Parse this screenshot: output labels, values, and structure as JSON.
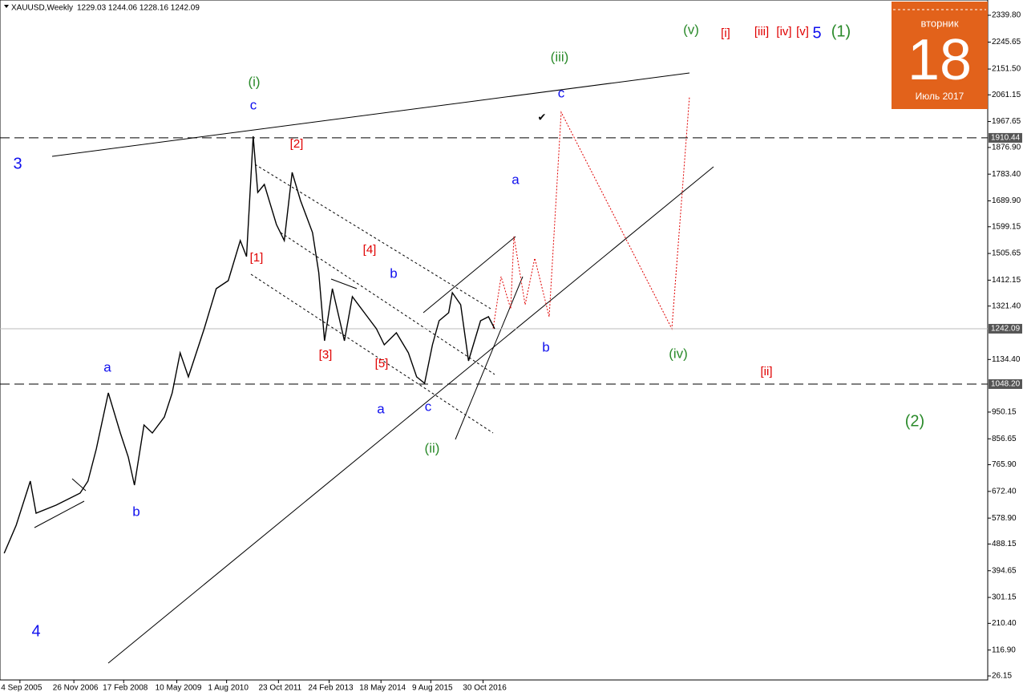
{
  "chart_data": {
    "type": "line",
    "title": "XAUUSD,Weekly",
    "ohlc": "1229.03 1244.06 1228.16 1242.09",
    "color": "#000000",
    "x": [
      2005.3,
      2005.59,
      2005.93,
      2006.07,
      2006.55,
      2007.13,
      2007.32,
      2007.52,
      2007.81,
      2008.1,
      2008.29,
      2008.44,
      2008.67,
      2008.87,
      2009.16,
      2009.35,
      2009.54,
      2009.74,
      2010.12,
      2010.41,
      2010.7,
      2010.99,
      2011.14,
      2011.3,
      2011.41,
      2011.57,
      2011.86,
      2012.05,
      2012.24,
      2012.44,
      2012.73,
      2012.88,
      2013.02,
      2013.21,
      2013.5,
      2013.69,
      2013.98,
      2014.27,
      2014.46,
      2014.75,
      2015.04,
      2015.24,
      2015.43,
      2015.62,
      2015.78,
      2016.01,
      2016.1,
      2016.3,
      2016.49,
      2016.78,
      2016.97,
      2017.12
    ],
    "values": [
      455.7,
      554.0,
      708.4,
      596.1,
      624.2,
      666.3,
      708.4,
      820.7,
      1017.3,
      876.9,
      792.6,
      694.4,
      905.0,
      876.9,
      933.0,
      1017.3,
      1157.7,
      1073.4,
      1241.9,
      1382.3,
      1410.4,
      1550.8,
      1494.6,
      1916.0,
      1719.3,
      1747.4,
      1607.0,
      1550.8,
      1789.5,
      1691.2,
      1578.9,
      1438.5,
      1199.8,
      1382.3,
      1199.8,
      1354.2,
      1298.1,
      1241.9,
      1185.8,
      1227.9,
      1157.7,
      1073.4,
      1051.0,
      1185.8,
      1270.0,
      1298.1,
      1368.3,
      1326.2,
      1129.6,
      1270.0,
      1284.0,
      1241.9
    ],
    "xlim": [
      2005.2,
      2029.0
    ],
    "xticks": [
      {
        "value": 2005.68,
        "label": "4 Sep 2005"
      },
      {
        "value": 2006.98,
        "label": "26 Nov 2006"
      },
      {
        "value": 2008.18,
        "label": "17 Feb 2008"
      },
      {
        "value": 2009.46,
        "label": "10 May 2009"
      },
      {
        "value": 2010.66,
        "label": "1 Aug 2010"
      },
      {
        "value": 2011.91,
        "label": "23 Oct 2011"
      },
      {
        "value": 2013.13,
        "label": "24 Feb 2013"
      },
      {
        "value": 2014.38,
        "label": "18 May 2014"
      },
      {
        "value": 2015.58,
        "label": "9 Aug 2015"
      },
      {
        "value": 2016.84,
        "label": "30 Oct 2016"
      }
    ],
    "ylim": [
      12.1,
      2393.2
    ],
    "yticks": [
      {
        "value": 2339.8,
        "label": "2339.80"
      },
      {
        "value": 2245.65,
        "label": "2245.65"
      },
      {
        "value": 2151.5,
        "label": "2151.50"
      },
      {
        "value": 2061.15,
        "label": "2061.15"
      },
      {
        "value": 1967.65,
        "label": "1967.65"
      },
      {
        "value": 1876.9,
        "label": "1876.90"
      },
      {
        "value": 1783.4,
        "label": "1783.40"
      },
      {
        "value": 1689.9,
        "label": "1689.90"
      },
      {
        "value": 1599.15,
        "label": "1599.15"
      },
      {
        "value": 1505.65,
        "label": "1505.65"
      },
      {
        "value": 1412.15,
        "label": "1412.15"
      },
      {
        "value": 1321.4,
        "label": "1321.40"
      },
      {
        "value": 1134.4,
        "label": "1134.40"
      },
      {
        "value": 950.15,
        "label": "950.15"
      },
      {
        "value": 856.65,
        "label": "856.65"
      },
      {
        "value": 765.9,
        "label": "765.90"
      },
      {
        "value": 672.4,
        "label": "672.40"
      },
      {
        "value": 578.9,
        "label": "578.90"
      },
      {
        "value": 488.15,
        "label": "488.15"
      },
      {
        "value": 394.65,
        "label": "394.65"
      },
      {
        "value": 301.15,
        "label": "301.15"
      },
      {
        "value": 210.4,
        "label": "210.40"
      },
      {
        "value": 116.9,
        "label": "116.90"
      },
      {
        "value": 26.15,
        "label": "26.15"
      }
    ],
    "levels": [
      1910.44,
      {
        "value": 1048.2,
        "label": "1048.20"
      }
    ],
    "last_price": 1242.09,
    "grid": false,
    "annotations": [
      "(v)",
      "[i]",
      "[iii]",
      "[iv]",
      "[v]",
      "5",
      "(1)",
      "(iii)",
      "(i)",
      "c",
      "c",
      "[2]",
      "3",
      "a",
      "[4]",
      "[1]",
      "b",
      "b",
      "(iv)",
      "[3]",
      "[5]",
      "a",
      "[ii]",
      "a",
      "c",
      "(2)",
      "(ii)",
      "b",
      "4",
      "✔"
    ],
    "calendar": {
      "weekday": "вторник",
      "day": "18",
      "month": "Июль 2017"
    }
  }
}
